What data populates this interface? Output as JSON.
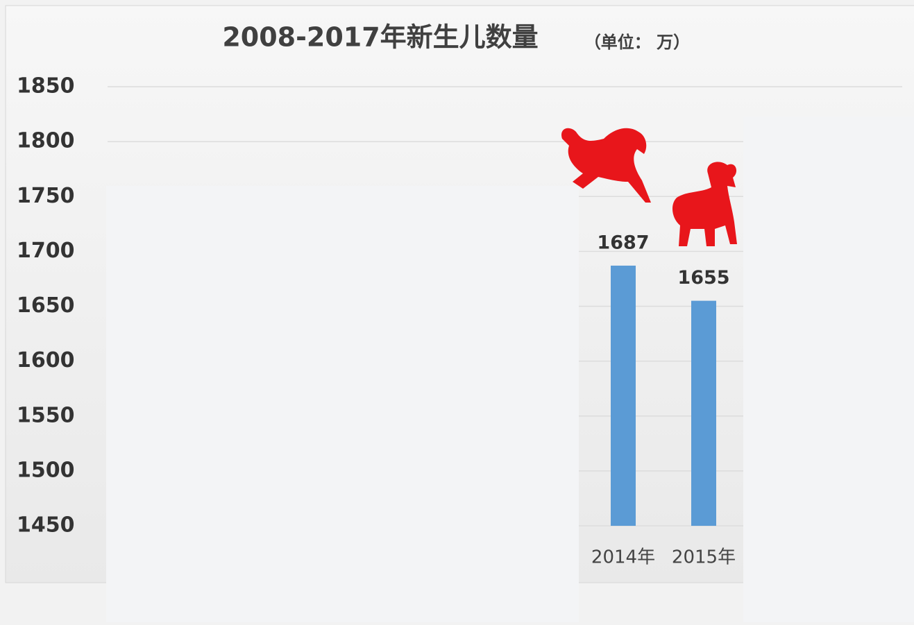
{
  "chart_data": {
    "type": "bar",
    "title": "2008-2017年新生儿数量",
    "subtitle": "（单位：  万）",
    "categories": [
      "2014年",
      "2015年"
    ],
    "values": [
      1687,
      1655
    ],
    "color": "#5b9bd5",
    "ylim": [
      1450,
      1850
    ],
    "yticks": [
      1450,
      1500,
      1550,
      1600,
      1650,
      1700,
      1750,
      1800,
      1850
    ],
    "grid": true
  }
}
